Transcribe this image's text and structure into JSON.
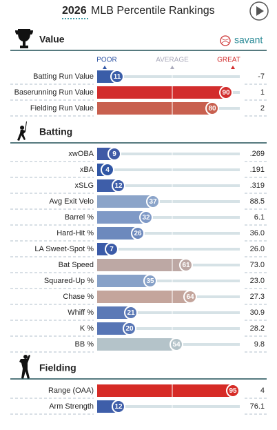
{
  "title_year": "2026",
  "title": "MLB Percentile Rankings",
  "logo": "savant",
  "legend": {
    "poor": "POOR",
    "average": "AVERAGE",
    "great": "GREAT"
  },
  "chart_data": {
    "type": "percentile-bar",
    "xlim": [
      0,
      100
    ],
    "sections": [
      {
        "name": "Value",
        "rows": [
          {
            "label": "Batting Run Value",
            "percentile": 11,
            "stat": "-7",
            "color": "#3a5da8"
          },
          {
            "label": "Baserunning Run Value",
            "percentile": 90,
            "stat": "1",
            "color": "#d22d2d"
          },
          {
            "label": "Fielding Run Value",
            "percentile": 80,
            "stat": "2",
            "color": "#c8604f"
          }
        ]
      },
      {
        "name": "Batting",
        "rows": [
          {
            "label": "xwOBA",
            "percentile": 9,
            "stat": ".269",
            "color": "#3f5aa6"
          },
          {
            "label": "xBA",
            "percentile": 4,
            "stat": ".191",
            "color": "#3056a5"
          },
          {
            "label": "xSLG",
            "percentile": 12,
            "stat": ".319",
            "color": "#3e5ea9"
          },
          {
            "label": "Avg Exit Velo",
            "percentile": 37,
            "stat": "88.5",
            "color": "#8ba4c9"
          },
          {
            "label": "Barrel %",
            "percentile": 32,
            "stat": "6.1",
            "color": "#7f99c6"
          },
          {
            "label": "Hard-Hit %",
            "percentile": 26,
            "stat": "36.0",
            "color": "#6d89bd"
          },
          {
            "label": "LA Sweet-Spot %",
            "percentile": 7,
            "stat": "26.0",
            "color": "#3b5ba8"
          },
          {
            "label": "Bat Speed",
            "percentile": 61,
            "stat": "73.0",
            "color": "#bda8a4"
          },
          {
            "label": "Squared-Up %",
            "percentile": 35,
            "stat": "23.0",
            "color": "#87a1c8"
          },
          {
            "label": "Chase %",
            "percentile": 64,
            "stat": "27.3",
            "color": "#c4a59c"
          },
          {
            "label": "Whiff %",
            "percentile": 21,
            "stat": "30.9",
            "color": "#5b79b6"
          },
          {
            "label": "K %",
            "percentile": 20,
            "stat": "28.2",
            "color": "#5775b5"
          },
          {
            "label": "BB %",
            "percentile": 54,
            "stat": "9.8",
            "color": "#b4c3c9"
          }
        ]
      },
      {
        "name": "Fielding",
        "rows": [
          {
            "label": "Range (OAA)",
            "percentile": 95,
            "stat": "4",
            "color": "#d62b26"
          },
          {
            "label": "Arm Strength",
            "percentile": 12,
            "stat": "76.1",
            "color": "#3e5ea9"
          }
        ]
      }
    ]
  }
}
